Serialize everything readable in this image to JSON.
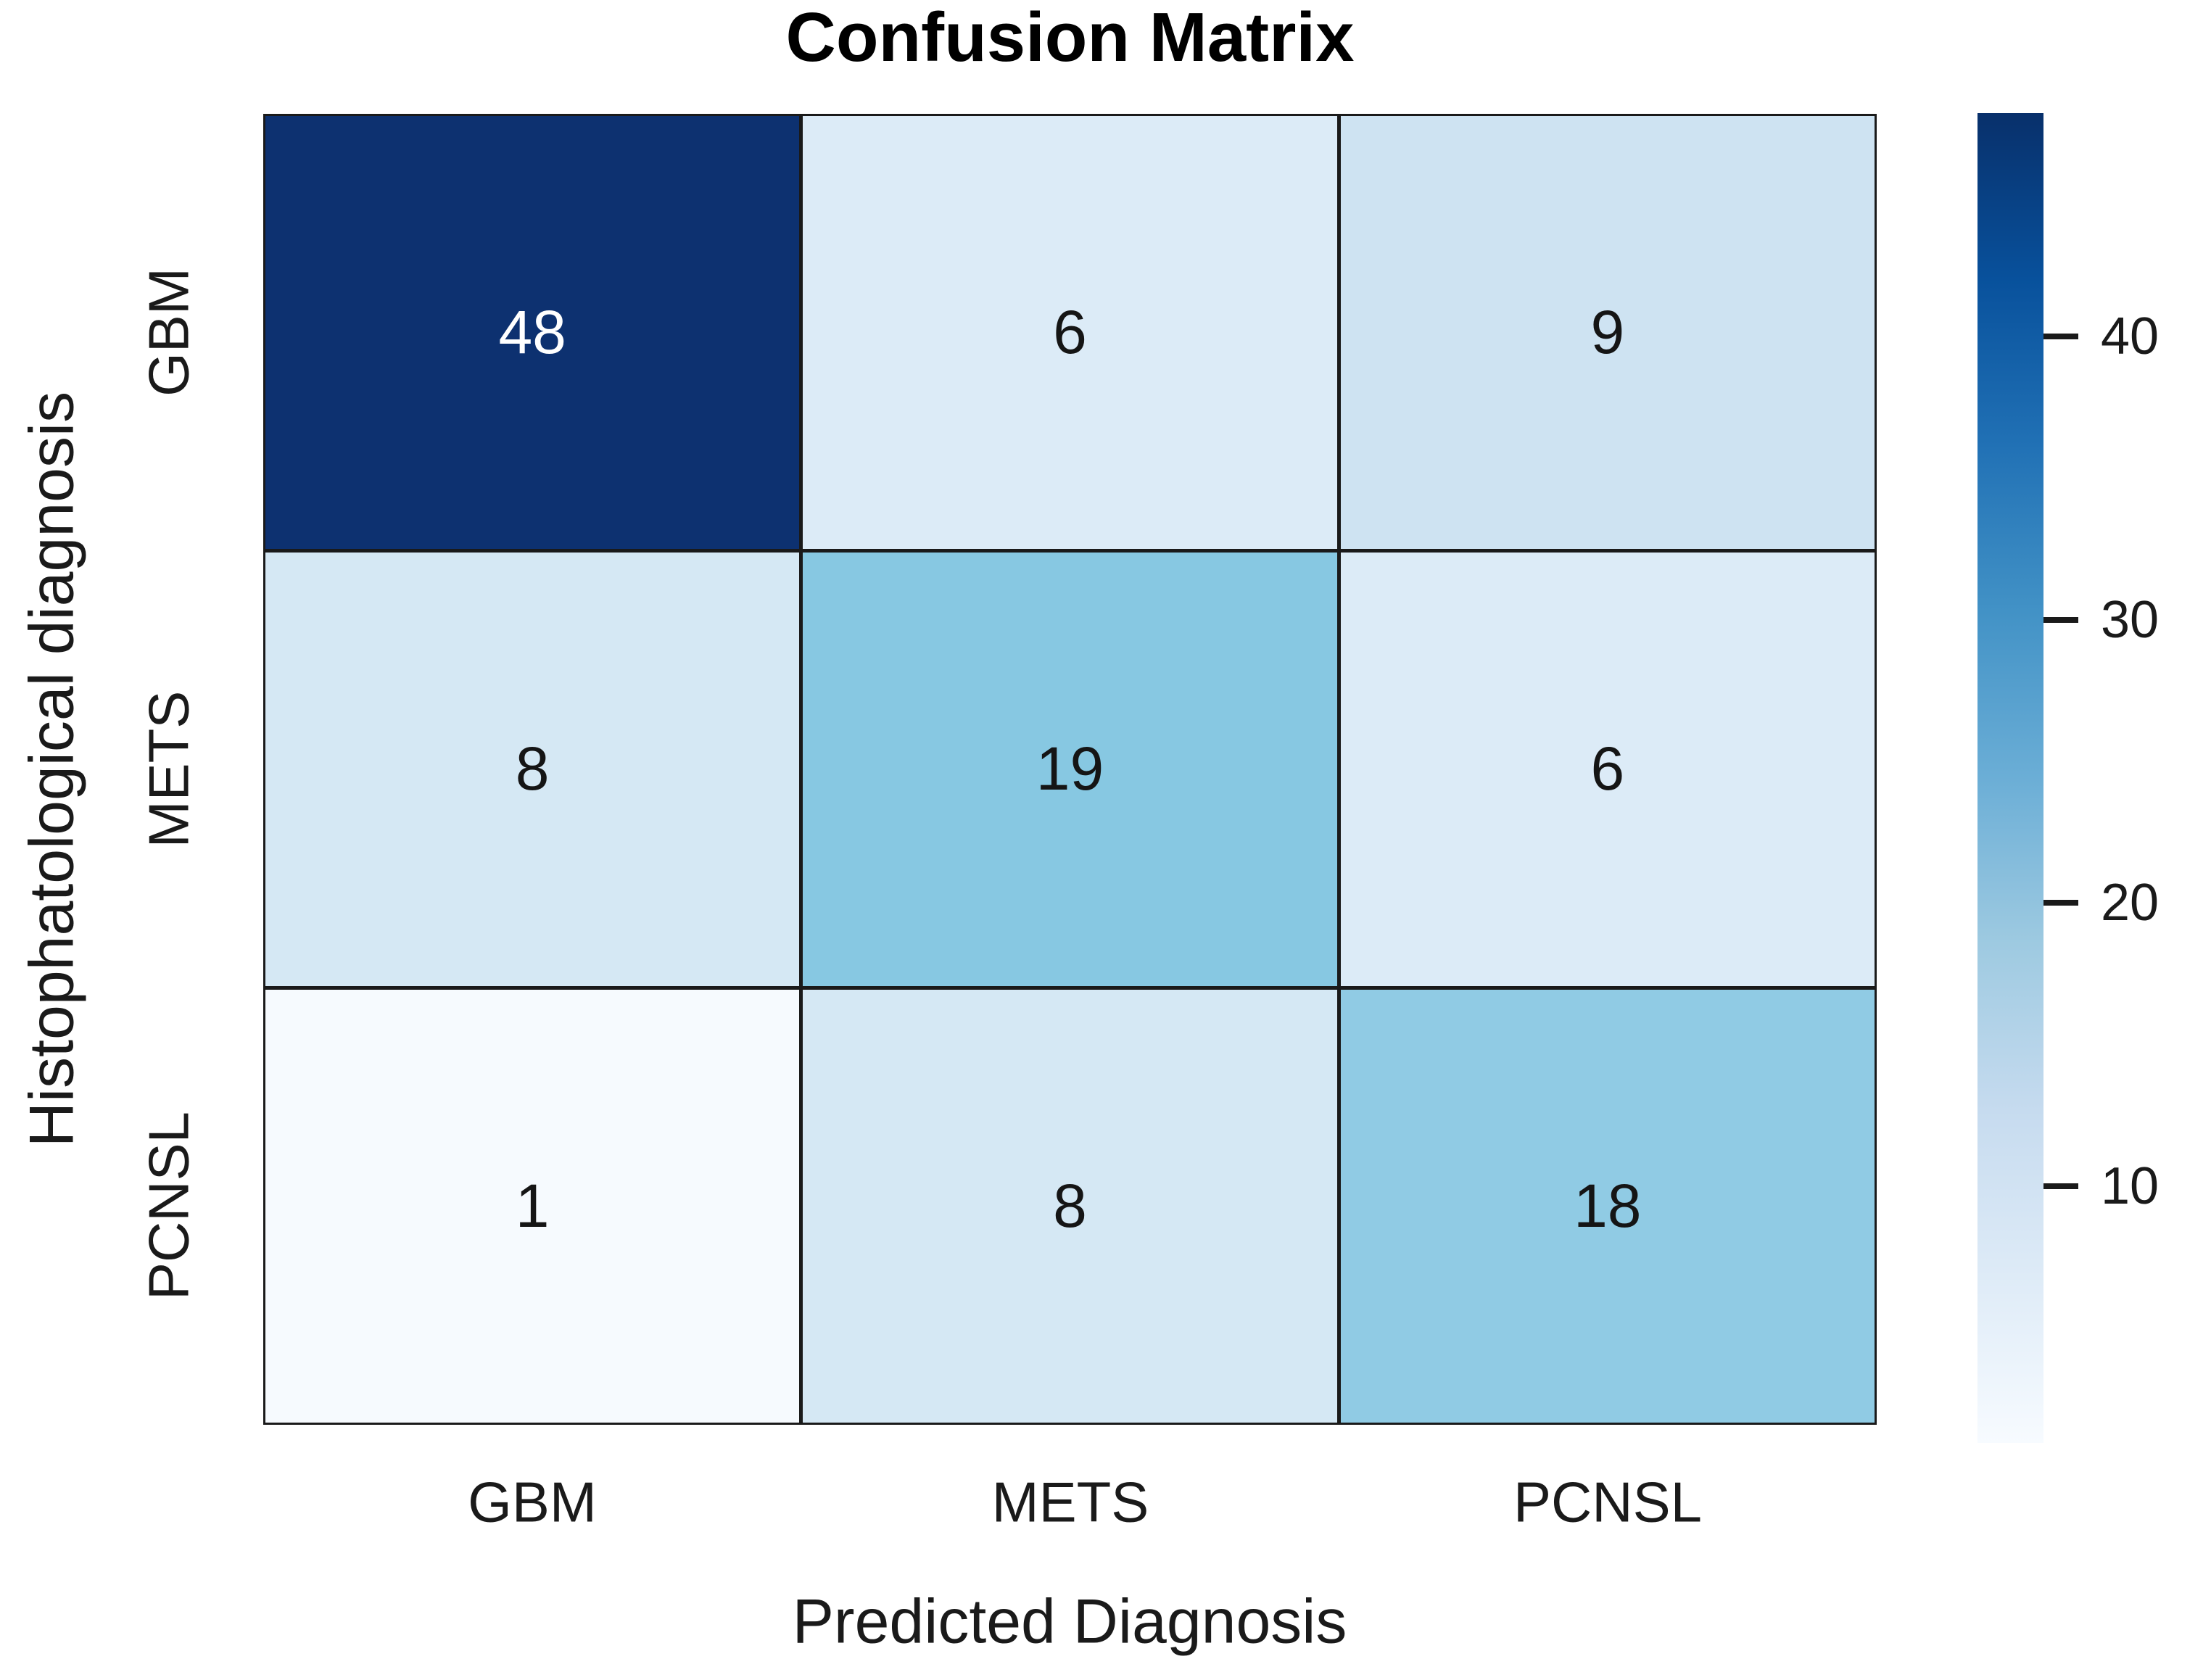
{
  "title": "Confusion Matrix",
  "axes": {
    "x_label": "Predicted Diagnosis",
    "y_label": "Histophatological diagnosis",
    "x_ticks": [
      "GBM",
      "METS",
      "PCNSL"
    ],
    "y_ticks": [
      "GBM",
      "METS",
      "PCNSL"
    ]
  },
  "colorbar": {
    "tick_labels": [
      "40",
      "30",
      "20",
      "10"
    ],
    "gradient_top_color": "#08306b",
    "gradient_bottom_color": "#f7fbff"
  },
  "chart_data": {
    "type": "heatmap",
    "title": "Confusion Matrix",
    "xlabel": "Predicted Diagnosis",
    "ylabel": "Histophatological diagnosis",
    "categories_x": [
      "GBM",
      "METS",
      "PCNSL"
    ],
    "categories_y": [
      "GBM",
      "METS",
      "PCNSL"
    ],
    "matrix": [
      [
        48,
        6,
        9
      ],
      [
        8,
        19,
        6
      ],
      [
        1,
        8,
        18
      ]
    ],
    "colormap": "Blues",
    "vmin": 1,
    "vmax": 48,
    "colorbar_ticks": [
      10,
      20,
      30,
      40
    ],
    "grid_line_color": "#1a1a1a",
    "legend_position": "right-colorbar",
    "cells": [
      {
        "row": "GBM",
        "col": "GBM",
        "value": "48",
        "bg": "#0d3170",
        "fg": "#ffffff"
      },
      {
        "row": "GBM",
        "col": "METS",
        "value": "6",
        "bg": "#dcebf7",
        "fg": "#151515"
      },
      {
        "row": "GBM",
        "col": "PCNSL",
        "value": "9",
        "bg": "#cee3f2",
        "fg": "#151515"
      },
      {
        "row": "METS",
        "col": "GBM",
        "value": "8",
        "bg": "#d5e8f4",
        "fg": "#151515"
      },
      {
        "row": "METS",
        "col": "METS",
        "value": "19",
        "bg": "#87c8e2",
        "fg": "#151515"
      },
      {
        "row": "METS",
        "col": "PCNSL",
        "value": "6",
        "bg": "#dcebf7",
        "fg": "#151515"
      },
      {
        "row": "PCNSL",
        "col": "GBM",
        "value": "1",
        "bg": "#f6fafe",
        "fg": "#151515"
      },
      {
        "row": "PCNSL",
        "col": "METS",
        "value": "8",
        "bg": "#d5e8f4",
        "fg": "#151515"
      },
      {
        "row": "PCNSL",
        "col": "PCNSL",
        "value": "18",
        "bg": "#90cbe4",
        "fg": "#151515"
      }
    ]
  }
}
